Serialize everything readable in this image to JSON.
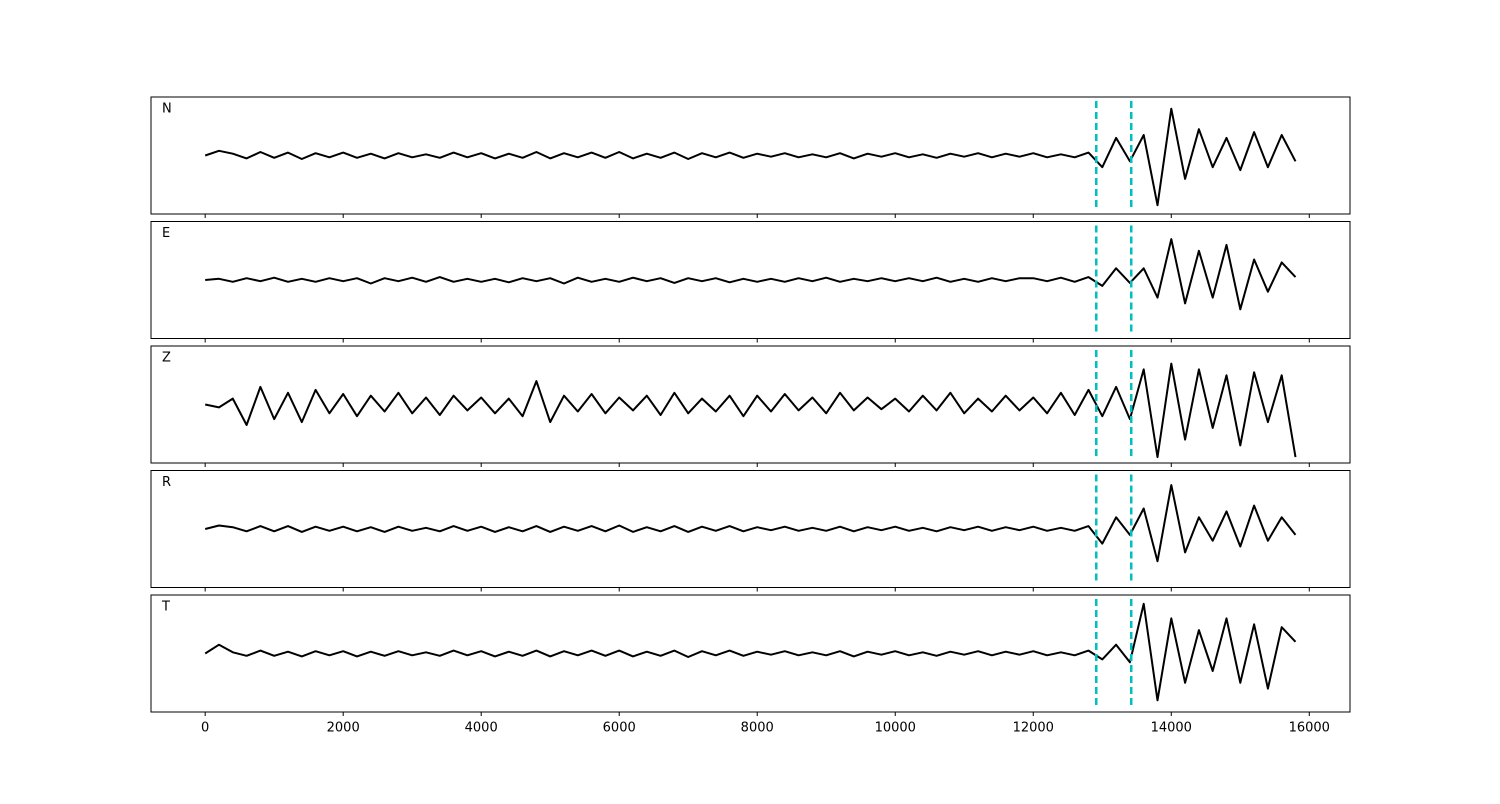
{
  "chart_data": {
    "type": "line",
    "x": [
      0,
      200,
      400,
      600,
      800,
      1000,
      1200,
      1400,
      1600,
      1800,
      2000,
      2200,
      2400,
      2600,
      2800,
      3000,
      3200,
      3400,
      3600,
      3800,
      4000,
      4200,
      4400,
      4600,
      4800,
      5000,
      5200,
      5400,
      5600,
      5800,
      6000,
      6200,
      6400,
      6600,
      6800,
      7000,
      7200,
      7400,
      7600,
      7800,
      8000,
      8200,
      8400,
      8600,
      8800,
      9000,
      9200,
      9400,
      9600,
      9800,
      10000,
      10200,
      10400,
      10600,
      10800,
      11000,
      11200,
      11400,
      11600,
      11800,
      12000,
      12200,
      12400,
      12600,
      12800,
      13000,
      13200,
      13400,
      13600,
      13800,
      14000,
      14200,
      14400,
      14600,
      14800,
      15000,
      15200,
      15400,
      15600,
      15800
    ],
    "series": [
      {
        "name": "N",
        "color": "#000000",
        "values": [
          0,
          0.08,
          0.03,
          -0.05,
          0.06,
          -0.04,
          0.05,
          -0.06,
          0.04,
          -0.03,
          0.05,
          -0.04,
          0.03,
          -0.05,
          0.04,
          -0.03,
          0.02,
          -0.04,
          0.05,
          -0.03,
          0.04,
          -0.05,
          0.03,
          -0.04,
          0.06,
          -0.05,
          0.04,
          -0.03,
          0.05,
          -0.04,
          0.06,
          -0.05,
          0.03,
          -0.04,
          0.05,
          -0.06,
          0.04,
          -0.03,
          0.05,
          -0.04,
          0.03,
          -0.02,
          0.04,
          -0.03,
          0.02,
          -0.03,
          0.04,
          -0.05,
          0.03,
          -0.02,
          0.04,
          -0.03,
          0.02,
          -0.04,
          0.03,
          -0.02,
          0.04,
          -0.03,
          0.03,
          -0.02,
          0.04,
          -0.03,
          0.02,
          -0.03,
          0.05,
          -0.2,
          0.3,
          -0.1,
          0.35,
          -0.85,
          0.8,
          -0.4,
          0.45,
          -0.2,
          0.3,
          -0.25,
          0.4,
          -0.2,
          0.35,
          -0.1
        ]
      },
      {
        "name": "E",
        "color": "#000000",
        "values": [
          0,
          0.02,
          -0.03,
          0.03,
          -0.02,
          0.04,
          -0.03,
          0.02,
          -0.03,
          0.03,
          -0.02,
          0.03,
          -0.06,
          0.03,
          -0.02,
          0.04,
          -0.03,
          0.05,
          -0.03,
          0.02,
          -0.03,
          0.02,
          -0.04,
          0.03,
          -0.02,
          0.03,
          -0.06,
          0.04,
          -0.03,
          0.02,
          -0.03,
          0.04,
          -0.02,
          0.03,
          -0.05,
          0.03,
          -0.02,
          0.03,
          -0.04,
          0.02,
          -0.03,
          0.02,
          -0.03,
          0.03,
          -0.02,
          0.04,
          -0.03,
          0.02,
          -0.02,
          0.03,
          -0.02,
          0.03,
          -0.02,
          0.04,
          -0.03,
          0.02,
          -0.03,
          0.03,
          -0.02,
          0.03,
          0.03,
          -0.02,
          0.04,
          -0.03,
          0.05,
          -0.1,
          0.2,
          -0.05,
          0.2,
          -0.3,
          0.7,
          -0.4,
          0.5,
          -0.3,
          0.6,
          -0.5,
          0.35,
          -0.2,
          0.3,
          0.05
        ]
      },
      {
        "name": "Z",
        "color": "#000000",
        "values": [
          0,
          -0.05,
          0.1,
          -0.35,
          0.3,
          -0.25,
          0.2,
          -0.3,
          0.25,
          -0.15,
          0.18,
          -0.2,
          0.15,
          -0.12,
          0.2,
          -0.15,
          0.12,
          -0.18,
          0.15,
          -0.1,
          0.12,
          -0.15,
          0.1,
          -0.2,
          0.4,
          -0.3,
          0.15,
          -0.12,
          0.18,
          -0.15,
          0.12,
          -0.1,
          0.15,
          -0.18,
          0.2,
          -0.15,
          0.1,
          -0.12,
          0.15,
          -0.2,
          0.15,
          -0.12,
          0.18,
          -0.1,
          0.12,
          -0.15,
          0.2,
          -0.1,
          0.12,
          -0.08,
          0.1,
          -0.12,
          0.15,
          -0.1,
          0.2,
          -0.15,
          0.1,
          -0.12,
          0.15,
          -0.1,
          0.12,
          -0.15,
          0.2,
          -0.18,
          0.25,
          -0.2,
          0.3,
          -0.25,
          0.6,
          -0.9,
          0.7,
          -0.6,
          0.6,
          -0.4,
          0.5,
          -0.7,
          0.55,
          -0.3,
          0.5,
          -0.9
        ]
      },
      {
        "name": "R",
        "color": "#000000",
        "values": [
          0,
          0.06,
          0.03,
          -0.04,
          0.05,
          -0.04,
          0.05,
          -0.05,
          0.04,
          -0.03,
          0.04,
          -0.04,
          0.03,
          -0.05,
          0.04,
          -0.03,
          0.02,
          -0.04,
          0.05,
          -0.03,
          0.04,
          -0.05,
          0.03,
          -0.04,
          0.05,
          -0.05,
          0.04,
          -0.03,
          0.05,
          -0.04,
          0.06,
          -0.05,
          0.03,
          -0.04,
          0.05,
          -0.05,
          0.04,
          -0.03,
          0.05,
          -0.04,
          0.03,
          -0.02,
          0.04,
          -0.03,
          0.02,
          -0.03,
          0.04,
          -0.04,
          0.03,
          -0.02,
          0.04,
          -0.03,
          0.02,
          -0.04,
          0.03,
          -0.02,
          0.04,
          -0.03,
          0.03,
          -0.02,
          0.04,
          -0.03,
          0.02,
          -0.03,
          0.05,
          -0.25,
          0.2,
          -0.1,
          0.35,
          -0.55,
          0.75,
          -0.4,
          0.2,
          -0.2,
          0.3,
          -0.3,
          0.4,
          -0.2,
          0.2,
          -0.1
        ]
      },
      {
        "name": "T",
        "color": "#000000",
        "values": [
          0,
          0.15,
          0.02,
          -0.04,
          0.05,
          -0.04,
          0.03,
          -0.05,
          0.04,
          -0.03,
          0.04,
          -0.05,
          0.03,
          -0.04,
          0.04,
          -0.03,
          0.02,
          -0.04,
          0.05,
          -0.03,
          0.04,
          -0.05,
          0.03,
          -0.04,
          0.05,
          -0.05,
          0.04,
          -0.03,
          0.05,
          -0.04,
          0.05,
          -0.05,
          0.03,
          -0.04,
          0.05,
          -0.06,
          0.04,
          -0.03,
          0.05,
          -0.04,
          0.03,
          -0.02,
          0.04,
          -0.03,
          0.02,
          -0.03,
          0.04,
          -0.05,
          0.03,
          -0.02,
          0.04,
          -0.03,
          0.02,
          -0.04,
          0.03,
          -0.02,
          0.04,
          -0.03,
          0.03,
          -0.02,
          0.04,
          -0.03,
          0.02,
          -0.03,
          0.05,
          -0.1,
          0.15,
          -0.15,
          0.85,
          -0.8,
          0.6,
          -0.5,
          0.4,
          -0.3,
          0.6,
          -0.5,
          0.5,
          -0.6,
          0.45,
          0.2
        ]
      }
    ],
    "ylim": [
      -1,
      1
    ],
    "xlim": [
      -785,
      16590
    ],
    "xticks": [
      0,
      2000,
      4000,
      6000,
      8000,
      10000,
      12000,
      14000,
      16000
    ],
    "vlines": {
      "color": "#00bfbf",
      "values": [
        12913,
        13420
      ]
    }
  }
}
